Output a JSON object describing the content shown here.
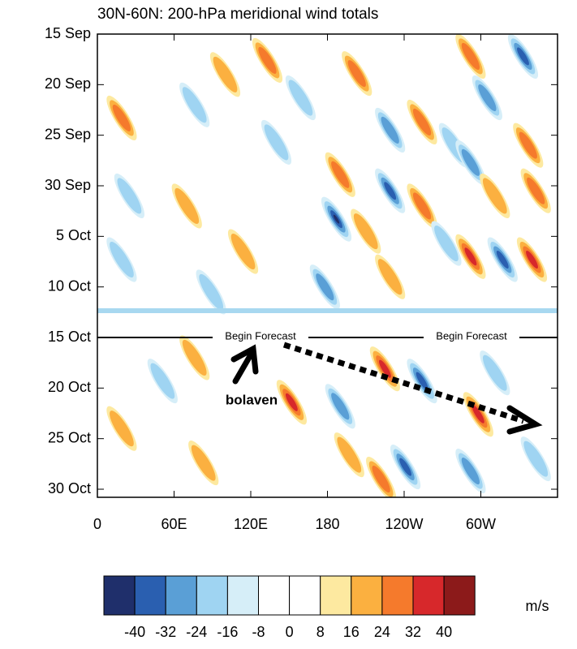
{
  "chart_data": {
    "type": "hovmoller",
    "title": "30N-60N: 200-hPa meridional wind totals",
    "xlim": [
      0,
      360
    ],
    "xticks": [
      0,
      {
        "value": 60,
        "label": "60E"
      },
      {
        "value": 120,
        "label": "120E"
      },
      180,
      {
        "value": 240,
        "label": "120W"
      },
      {
        "value": 300,
        "label": "60W"
      }
    ],
    "ylim": [
      0,
      45.8
    ],
    "yticks": [
      {
        "value": 0,
        "label": "15 Sep"
      },
      {
        "value": 5,
        "label": "20 Sep"
      },
      {
        "value": 10,
        "label": "25 Sep"
      },
      {
        "value": 15,
        "label": "30 Sep"
      },
      {
        "value": 20,
        "label": "5 Oct"
      },
      {
        "value": 25,
        "label": "10 Oct"
      },
      {
        "value": 30,
        "label": "15 Oct"
      },
      {
        "value": 35,
        "label": "20 Oct"
      },
      {
        "value": 40,
        "label": "25 Oct"
      },
      {
        "value": 45,
        "label": "30 Oct"
      }
    ],
    "forecast_start": 30,
    "annotations": [
      "Begin Forecast",
      "Begin Forecast",
      "bolaven"
    ],
    "colorbar": {
      "levels": [
        -40,
        -32,
        -24,
        -16,
        -8,
        0,
        8,
        16,
        24,
        32,
        40
      ],
      "colors": [
        "#1f2f6b",
        "#2a5fb0",
        "#5a9fd6",
        "#9fd4f2",
        "#d6eef8",
        "#ffffff",
        "#ffffff",
        "#fde9a0",
        "#fbb040",
        "#f57a2c",
        "#d7282b",
        "#8c1a1a"
      ],
      "label": "m/s"
    },
    "features": [
      {
        "lon": 133,
        "day": 2.6,
        "value": 24
      },
      {
        "lon": 100,
        "day": 4,
        "value": 16
      },
      {
        "lon": 203,
        "day": 3.9,
        "value": 24
      },
      {
        "lon": 292,
        "day": 2.2,
        "value": 24
      },
      {
        "lon": 333,
        "day": 2.2,
        "value": -32
      },
      {
        "lon": 305,
        "day": 6.3,
        "value": -24
      },
      {
        "lon": 19,
        "day": 8.3,
        "value": 24
      },
      {
        "lon": 76,
        "day": 7,
        "value": -16
      },
      {
        "lon": 159,
        "day": 6.3,
        "value": -16
      },
      {
        "lon": 229,
        "day": 9.5,
        "value": -24
      },
      {
        "lon": 254,
        "day": 8.7,
        "value": 24
      },
      {
        "lon": 337,
        "day": 11,
        "value": 24
      },
      {
        "lon": 279,
        "day": 11,
        "value": -16
      },
      {
        "lon": 140,
        "day": 10.7,
        "value": -16
      },
      {
        "lon": 190,
        "day": 13.9,
        "value": 24
      },
      {
        "lon": 229,
        "day": 15.5,
        "value": -32
      },
      {
        "lon": 292,
        "day": 12.7,
        "value": -24
      },
      {
        "lon": 311,
        "day": 16,
        "value": 16
      },
      {
        "lon": 343,
        "day": 15.5,
        "value": 24
      },
      {
        "lon": 25,
        "day": 16,
        "value": -16
      },
      {
        "lon": 70,
        "day": 17,
        "value": 16
      },
      {
        "lon": 187,
        "day": 18.3,
        "value": -40
      },
      {
        "lon": 254,
        "day": 17,
        "value": 24
      },
      {
        "lon": 210,
        "day": 19.5,
        "value": 16
      },
      {
        "lon": 292,
        "day": 22,
        "value": 32
      },
      {
        "lon": 317,
        "day": 22.3,
        "value": -32
      },
      {
        "lon": 340,
        "day": 22.3,
        "value": 32
      },
      {
        "lon": 273,
        "day": 20.7,
        "value": -16
      },
      {
        "lon": 19,
        "day": 22.3,
        "value": -16
      },
      {
        "lon": 114,
        "day": 21.5,
        "value": 16
      },
      {
        "lon": 178,
        "day": 25,
        "value": -24
      },
      {
        "lon": 229,
        "day": 24,
        "value": 16
      },
      {
        "lon": 89,
        "day": 25.5,
        "value": -16
      },
      {
        "lon": 152,
        "day": 36.4,
        "value": 32
      },
      {
        "lon": 225,
        "day": 33.1,
        "value": 32
      },
      {
        "lon": 190,
        "day": 36.8,
        "value": -24
      },
      {
        "lon": 254,
        "day": 34.3,
        "value": -32
      },
      {
        "lon": 222,
        "day": 44,
        "value": 24
      },
      {
        "lon": 241,
        "day": 42.8,
        "value": -32
      },
      {
        "lon": 298,
        "day": 37.6,
        "value": 32
      },
      {
        "lon": 311,
        "day": 33.5,
        "value": -16
      },
      {
        "lon": 51,
        "day": 34.3,
        "value": -16
      },
      {
        "lon": 19,
        "day": 39,
        "value": 16
      },
      {
        "lon": 83,
        "day": 42.4,
        "value": 16
      },
      {
        "lon": 197,
        "day": 41.6,
        "value": 16
      },
      {
        "lon": 292,
        "day": 43.2,
        "value": -24
      },
      {
        "lon": 76,
        "day": 32,
        "value": 16
      },
      {
        "lon": 343,
        "day": 42,
        "value": -16
      }
    ]
  }
}
